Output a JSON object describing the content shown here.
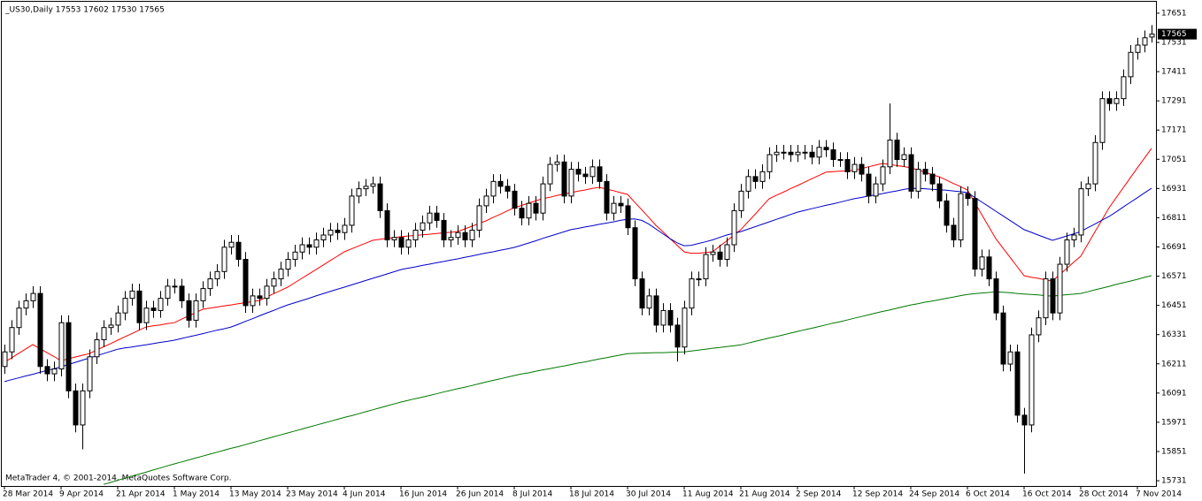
{
  "chart_data": {
    "type": "candlestick",
    "title": "_US30,Daily  17553 17602 17530 17565",
    "watermark": "MetaTrader 4, © 2001-2014, MetaQuotes Software Corp.",
    "categories": [
      "28 Mar 2014",
      null,
      null,
      null,
      null,
      null,
      null,
      null,
      "9 Apr 2014",
      null,
      null,
      null,
      null,
      null,
      null,
      null,
      "21 Apr 2014",
      null,
      null,
      null,
      null,
      null,
      null,
      null,
      "1 May 2014",
      null,
      null,
      null,
      null,
      null,
      null,
      null,
      "13 May 2014",
      null,
      null,
      null,
      null,
      null,
      null,
      null,
      "23 May 2014",
      null,
      null,
      null,
      null,
      null,
      null,
      null,
      "4 Jun 2014",
      null,
      null,
      null,
      null,
      null,
      null,
      null,
      "16 Jun 2014",
      null,
      null,
      null,
      null,
      null,
      null,
      null,
      "26 Jun 2014",
      null,
      null,
      null,
      null,
      null,
      null,
      null,
      "8 Jul 2014",
      null,
      null,
      null,
      null,
      null,
      null,
      null,
      "18 Jul 2014",
      null,
      null,
      null,
      null,
      null,
      null,
      null,
      "30 Jul 2014",
      null,
      null,
      null,
      null,
      null,
      null,
      null,
      "11 Aug 2014",
      null,
      null,
      null,
      null,
      null,
      null,
      null,
      "21 Aug 2014",
      null,
      null,
      null,
      null,
      null,
      null,
      null,
      "2 Sep 2014",
      null,
      null,
      null,
      null,
      null,
      null,
      null,
      "12 Sep 2014",
      null,
      null,
      null,
      null,
      null,
      null,
      null,
      "24 Sep 2014",
      null,
      null,
      null,
      null,
      null,
      null,
      null,
      "6 Oct 2014",
      null,
      null,
      null,
      null,
      null,
      null,
      null,
      "16 Oct 2014",
      null,
      null,
      null,
      null,
      null,
      null,
      null,
      "28 Oct 2014",
      null,
      null,
      null,
      null,
      null,
      null,
      null,
      "7 Nov 2014",
      null,
      null
    ],
    "open": [
      16200,
      16260,
      16360,
      16440,
      16470,
      16500,
      16200,
      16170,
      16190,
      16380,
      16100,
      15960,
      16100,
      16240,
      16310,
      16360,
      16370,
      16420,
      16480,
      16510,
      16380,
      16440,
      16430,
      16480,
      16530,
      16530,
      16470,
      16390,
      16470,
      16520,
      16560,
      16590,
      16690,
      16710,
      16640,
      16450,
      16490,
      16480,
      16530,
      16560,
      16600,
      16640,
      16670,
      16700,
      16690,
      16720,
      16740,
      16760,
      16750,
      16780,
      16900,
      16930,
      16940,
      16950,
      16840,
      16720,
      16730,
      16690,
      16720,
      16760,
      16790,
      16830,
      16800,
      16720,
      16730,
      16750,
      16720,
      16760,
      16860,
      16900,
      16960,
      16940,
      16920,
      16850,
      16810,
      16870,
      16830,
      16950,
      17030,
      17040,
      16900,
      17010,
      16990,
      16980,
      17020,
      16960,
      16830,
      16870,
      16860,
      16770,
      16560,
      16440,
      16490,
      16370,
      16430,
      16370,
      16280,
      16440,
      16560,
      16560,
      16660,
      16670,
      16640,
      16700,
      16840,
      16920,
      16980,
      16960,
      17000,
      17070,
      17080,
      17080,
      17070,
      17080,
      17080,
      17060,
      17100,
      17090,
      17050,
      17050,
      17000,
      17030,
      16990,
      16900,
      16950,
      17020,
      17130,
      17050,
      17070,
      16920,
      17010,
      16990,
      16950,
      16880,
      16780,
      16720,
      16910,
      16890,
      16600,
      16650,
      16560,
      16420,
      16210,
      16260,
      16000,
      15960,
      16330,
      16400,
      16560,
      16420,
      16620,
      16720,
      16740,
      16930,
      16950,
      17120,
      17300,
      17280,
      17300,
      17390,
      17490,
      17520,
      17553
    ],
    "high": [
      16290,
      16390,
      16470,
      16500,
      16530,
      16530,
      16230,
      16220,
      16410,
      16410,
      16130,
      16130,
      16270,
      16340,
      16390,
      16400,
      16450,
      16510,
      16540,
      16540,
      16470,
      16470,
      16510,
      16560,
      16560,
      16560,
      16500,
      16500,
      16550,
      16590,
      16620,
      16720,
      16740,
      16740,
      16670,
      16520,
      16520,
      16560,
      16590,
      16630,
      16670,
      16700,
      16730,
      16730,
      16750,
      16770,
      16790,
      16790,
      16810,
      16930,
      16960,
      16970,
      16980,
      16980,
      16870,
      16760,
      16760,
      16750,
      16790,
      16820,
      16860,
      16860,
      16830,
      16760,
      16780,
      16780,
      16790,
      16890,
      16930,
      16990,
      16990,
      16970,
      16950,
      16880,
      16900,
      16900,
      16980,
      17060,
      17070,
      17070,
      17040,
      17040,
      17020,
      17050,
      17050,
      16990,
      16900,
      16900,
      16890,
      16800,
      16590,
      16520,
      16520,
      16460,
      16460,
      16400,
      16470,
      16590,
      16590,
      16690,
      16700,
      16700,
      16730,
      16870,
      16950,
      17010,
      17010,
      17030,
      17100,
      17110,
      17110,
      17110,
      17110,
      17110,
      17110,
      17130,
      17130,
      17120,
      17080,
      17080,
      17060,
      17060,
      17020,
      16980,
      17050,
      17280,
      17160,
      17100,
      17100,
      17040,
      17040,
      17020,
      16980,
      16910,
      16810,
      16940,
      16940,
      16920,
      16680,
      16680,
      16590,
      16450,
      16290,
      16290,
      16030,
      16360,
      16430,
      16590,
      16590,
      16650,
      16750,
      16770,
      16960,
      16980,
      17150,
      17330,
      17330,
      17330,
      17420,
      17520,
      17550,
      17580,
      17602
    ],
    "low": [
      16170,
      16230,
      16330,
      16410,
      16440,
      16170,
      16140,
      16140,
      16160,
      16070,
      15930,
      15860,
      16070,
      16210,
      16280,
      16330,
      16340,
      16390,
      16450,
      16350,
      16350,
      16400,
      16400,
      16450,
      16500,
      16440,
      16360,
      16360,
      16440,
      16490,
      16530,
      16560,
      16660,
      16610,
      16420,
      16420,
      16450,
      16450,
      16500,
      16530,
      16570,
      16610,
      16640,
      16660,
      16660,
      16690,
      16710,
      16720,
      16720,
      16750,
      16870,
      16900,
      16910,
      16810,
      16690,
      16690,
      16660,
      16660,
      16690,
      16730,
      16760,
      16770,
      16690,
      16690,
      16700,
      16690,
      16690,
      16730,
      16830,
      16870,
      16910,
      16890,
      16820,
      16780,
      16780,
      16800,
      16800,
      16920,
      17000,
      16870,
      16870,
      16960,
      16950,
      16950,
      16930,
      16800,
      16800,
      16830,
      16740,
      16530,
      16410,
      16410,
      16340,
      16340,
      16340,
      16220,
      16250,
      16410,
      16530,
      16530,
      16630,
      16610,
      16610,
      16670,
      16810,
      16890,
      16930,
      16930,
      16970,
      17040,
      17050,
      17040,
      17040,
      17050,
      17030,
      17030,
      17060,
      17020,
      17020,
      16970,
      16970,
      16960,
      16870,
      16870,
      16920,
      16990,
      17020,
      17020,
      16890,
      16890,
      16960,
      16920,
      16850,
      16750,
      16690,
      16690,
      16860,
      16570,
      16570,
      16530,
      16390,
      16180,
      16180,
      15970,
      15760,
      15930,
      16300,
      16370,
      16390,
      16390,
      16590,
      16690,
      16710,
      16900,
      16920,
      17090,
      17250,
      17250,
      17270,
      17360,
      17460,
      17490,
      17530
    ],
    "close": [
      16260,
      16360,
      16440,
      16470,
      16500,
      16200,
      16170,
      16190,
      16380,
      16100,
      15960,
      16100,
      16240,
      16310,
      16360,
      16370,
      16420,
      16480,
      16510,
      16380,
      16440,
      16430,
      16480,
      16530,
      16530,
      16470,
      16390,
      16470,
      16520,
      16560,
      16590,
      16690,
      16710,
      16640,
      16450,
      16490,
      16480,
      16530,
      16560,
      16600,
      16640,
      16670,
      16700,
      16690,
      16720,
      16740,
      16760,
      16750,
      16780,
      16900,
      16930,
      16940,
      16950,
      16840,
      16720,
      16730,
      16690,
      16720,
      16760,
      16790,
      16830,
      16800,
      16720,
      16730,
      16750,
      16720,
      16760,
      16860,
      16900,
      16960,
      16940,
      16920,
      16850,
      16810,
      16870,
      16830,
      16950,
      17030,
      17040,
      16900,
      17010,
      16990,
      16980,
      17020,
      16960,
      16830,
      16870,
      16860,
      16770,
      16560,
      16440,
      16490,
      16370,
      16430,
      16370,
      16280,
      16440,
      16560,
      16560,
      16660,
      16670,
      16640,
      16700,
      16840,
      16920,
      16980,
      16960,
      17000,
      17070,
      17080,
      17080,
      17070,
      17080,
      17080,
      17060,
      17100,
      17090,
      17050,
      17050,
      17000,
      17030,
      16990,
      16900,
      16950,
      17020,
      17130,
      17050,
      17070,
      16920,
      17010,
      16990,
      16950,
      16880,
      16780,
      16720,
      16910,
      16890,
      16600,
      16650,
      16560,
      16420,
      16210,
      16260,
      16000,
      15960,
      16330,
      16400,
      16560,
      16420,
      16620,
      16720,
      16740,
      16930,
      16950,
      17120,
      17300,
      17280,
      17300,
      17390,
      17490,
      17520,
      17550,
      17565
    ],
    "up_color": "#ffffff",
    "down_color": "#000000",
    "lines": [
      {
        "color": "#ff0000",
        "values": [
          16217,
          16235,
          16254,
          16272,
          16290,
          16274,
          16257,
          16241,
          16224,
          16231,
          16239,
          16246,
          16253,
          16267,
          16281,
          16294,
          16308,
          16322,
          16335,
          16349,
          16362,
          16367,
          16371,
          16376,
          16380,
          16394,
          16408,
          16421,
          16435,
          16440,
          16444,
          16449,
          16453,
          16458,
          16462,
          16467,
          16471,
          16485,
          16499,
          16512,
          16526,
          16544,
          16562,
          16580,
          16598,
          16616,
          16635,
          16653,
          16671,
          16683,
          16695,
          16706,
          16718,
          16722,
          16726,
          16729,
          16733,
          16736,
          16738,
          16741,
          16743,
          16746,
          16749,
          16751,
          16754,
          16765,
          16776,
          16787,
          16798,
          16812,
          16825,
          16839,
          16852,
          16861,
          16871,
          16880,
          16889,
          16895,
          16902,
          16908,
          16914,
          16920,
          16925,
          16931,
          16936,
          16929,
          16922,
          16914,
          16907,
          16875,
          16844,
          16812,
          16780,
          16753,
          16725,
          16698,
          16671,
          16665,
          16665,
          16668,
          16671,
          16694,
          16716,
          16739,
          16762,
          16794,
          16825,
          16857,
          16889,
          16903,
          16916,
          16930,
          16943,
          16957,
          16971,
          16984,
          16998,
          17000,
          17002,
          17003,
          17005,
          17012,
          17020,
          17027,
          17034,
          17030,
          17025,
          17021,
          17016,
          17007,
          16998,
          16988,
          16979,
          16966,
          16952,
          16939,
          16925,
          16875,
          16825,
          16775,
          16725,
          16687,
          16649,
          16611,
          16573,
          16567,
          16562,
          16556,
          16551,
          16577,
          16602,
          16628,
          16653,
          16703,
          16753,
          16802,
          16852,
          16893,
          16934,
          16975,
          17016,
          17056,
          17096
        ]
      },
      {
        "color": "#0000c8",
        "values": [
          16138,
          16146,
          16153,
          16161,
          16168,
          16176,
          16184,
          16191,
          16199,
          16208,
          16217,
          16226,
          16235,
          16244,
          16253,
          16262,
          16271,
          16276,
          16280,
          16285,
          16289,
          16294,
          16299,
          16303,
          16308,
          16315,
          16322,
          16328,
          16335,
          16342,
          16349,
          16355,
          16362,
          16373,
          16385,
          16396,
          16408,
          16419,
          16430,
          16442,
          16453,
          16462,
          16471,
          16480,
          16490,
          16499,
          16508,
          16517,
          16526,
          16535,
          16544,
          16553,
          16562,
          16571,
          16580,
          16589,
          16598,
          16604,
          16609,
          16615,
          16620,
          16626,
          16631,
          16637,
          16642,
          16648,
          16654,
          16660,
          16666,
          16671,
          16677,
          16683,
          16689,
          16698,
          16707,
          16716,
          16726,
          16735,
          16744,
          16753,
          16762,
          16767,
          16773,
          16778,
          16784,
          16789,
          16794,
          16800,
          16805,
          16806,
          16800,
          16785,
          16765,
          16745,
          16725,
          16708,
          16696,
          16698,
          16705,
          16712,
          16720,
          16730,
          16740,
          16747,
          16754,
          16764,
          16774,
          16784,
          16794,
          16804,
          16814,
          16824,
          16834,
          16841,
          16848,
          16855,
          16862,
          16868,
          16875,
          16882,
          16889,
          16894,
          16900,
          16905,
          16910,
          16916,
          16921,
          16927,
          16932,
          16931,
          16930,
          16928,
          16926,
          16924,
          16921,
          16918,
          16914,
          16895,
          16876,
          16857,
          16838,
          16819,
          16800,
          16781,
          16762,
          16751,
          16740,
          16729,
          16718,
          16727,
          16736,
          16745,
          16754,
          16770,
          16785,
          16801,
          16816,
          16835,
          16855,
          16874,
          16893,
          16913,
          16932
        ]
      },
      {
        "color": "#007800",
        "values": [
          null,
          null,
          null,
          null,
          null,
          null,
          null,
          null,
          null,
          null,
          null,
          null,
          null,
          null,
          15716,
          15724,
          15733,
          15741,
          15750,
          15758,
          15766,
          15775,
          15783,
          15792,
          15800,
          15808,
          15816,
          15824,
          15832,
          15840,
          15848,
          15856,
          15864,
          15871,
          15879,
          15887,
          15895,
          15903,
          15911,
          15919,
          15927,
          15935,
          15943,
          15951,
          15959,
          15967,
          15975,
          15983,
          15991,
          15998,
          16006,
          16014,
          16022,
          16030,
          16038,
          16046,
          16054,
          16061,
          16068,
          16074,
          16081,
          16088,
          16095,
          16102,
          16109,
          16115,
          16122,
          16129,
          16136,
          16143,
          16149,
          16156,
          16163,
          16169,
          16174,
          16180,
          16186,
          16191,
          16197,
          16202,
          16208,
          16214,
          16219,
          16225,
          16231,
          16236,
          16242,
          16247,
          16253,
          16254,
          16255,
          16256,
          16257,
          16257,
          16258,
          16259,
          16260,
          16264,
          16267,
          16271,
          16275,
          16278,
          16282,
          16285,
          16289,
          16296,
          16303,
          16310,
          16317,
          16323,
          16330,
          16337,
          16344,
          16351,
          16357,
          16364,
          16371,
          16378,
          16384,
          16391,
          16398,
          16405,
          16412,
          16419,
          16426,
          16432,
          16439,
          16446,
          16453,
          16458,
          16464,
          16469,
          16474,
          16480,
          16485,
          16491,
          16496,
          16499,
          16502,
          16504,
          16507,
          16505,
          16503,
          16500,
          16498,
          16496,
          16494,
          16491,
          16489,
          16492,
          16495,
          16497,
          16500,
          16507,
          16515,
          16522,
          16529,
          16537,
          16544,
          16551,
          16558,
          16566,
          16573
        ]
      }
    ],
    "ylim": [
      15713,
      17687
    ],
    "yticks": [
      17651,
      17531,
      17411,
      17291,
      17171,
      17051,
      16931,
      16811,
      16691,
      16571,
      16451,
      16331,
      16211,
      16091,
      15971,
      15851,
      15731
    ],
    "grid": false
  }
}
